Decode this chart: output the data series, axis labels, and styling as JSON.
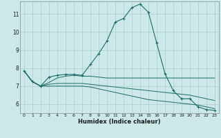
{
  "xlabel": "Humidex (Indice chaleur)",
  "bg_color": "#cce8e8",
  "grid_color": "#aacaca",
  "line_color": "#1a6b6b",
  "xlim": [
    -0.5,
    23.5
  ],
  "ylim": [
    5.5,
    11.7
  ],
  "yticks": [
    6,
    7,
    8,
    9,
    10,
    11
  ],
  "xticks": [
    0,
    1,
    2,
    3,
    4,
    5,
    6,
    7,
    8,
    9,
    10,
    11,
    12,
    13,
    14,
    15,
    16,
    17,
    18,
    19,
    20,
    21,
    22,
    23
  ],
  "line1_x": [
    0,
    1,
    2,
    3,
    4,
    5,
    6,
    7,
    8,
    9,
    10,
    11,
    12,
    13,
    14,
    15,
    16,
    17,
    18,
    19,
    20,
    21,
    22,
    23
  ],
  "line1_y": [
    7.85,
    7.25,
    7.0,
    7.5,
    7.6,
    7.65,
    7.65,
    7.6,
    8.2,
    8.8,
    9.5,
    10.55,
    10.75,
    11.35,
    11.55,
    11.1,
    9.4,
    7.7,
    6.75,
    6.3,
    6.3,
    5.85,
    5.7,
    5.65
  ],
  "line2_x": [
    0,
    1,
    2,
    3,
    4,
    5,
    6,
    7,
    8,
    9,
    10,
    11,
    12,
    13,
    14,
    15,
    16,
    17,
    18,
    19,
    20,
    21,
    22,
    23
  ],
  "line2_y": [
    7.85,
    7.25,
    7.0,
    7.2,
    7.45,
    7.55,
    7.6,
    7.55,
    7.55,
    7.5,
    7.45,
    7.45,
    7.45,
    7.45,
    7.45,
    7.45,
    7.45,
    7.45,
    7.45,
    7.45,
    7.45,
    7.45,
    7.45,
    7.45
  ],
  "line3_x": [
    0,
    1,
    2,
    3,
    4,
    5,
    6,
    7,
    8,
    9,
    10,
    11,
    12,
    13,
    14,
    15,
    16,
    17,
    18,
    19,
    20,
    21,
    22,
    23
  ],
  "line3_y": [
    7.85,
    7.25,
    7.0,
    7.1,
    7.15,
    7.15,
    7.15,
    7.15,
    7.1,
    7.05,
    7.0,
    6.95,
    6.9,
    6.85,
    6.8,
    6.75,
    6.7,
    6.65,
    6.6,
    6.55,
    6.5,
    6.4,
    6.3,
    6.2
  ],
  "line4_x": [
    0,
    1,
    2,
    3,
    4,
    5,
    6,
    7,
    8,
    9,
    10,
    11,
    12,
    13,
    14,
    15,
    16,
    17,
    18,
    19,
    20,
    21,
    22,
    23
  ],
  "line4_y": [
    7.85,
    7.25,
    7.0,
    7.0,
    7.0,
    7.0,
    7.0,
    7.0,
    6.95,
    6.85,
    6.75,
    6.65,
    6.55,
    6.45,
    6.35,
    6.25,
    6.2,
    6.15,
    6.1,
    6.05,
    6.0,
    5.95,
    5.85,
    5.75
  ]
}
